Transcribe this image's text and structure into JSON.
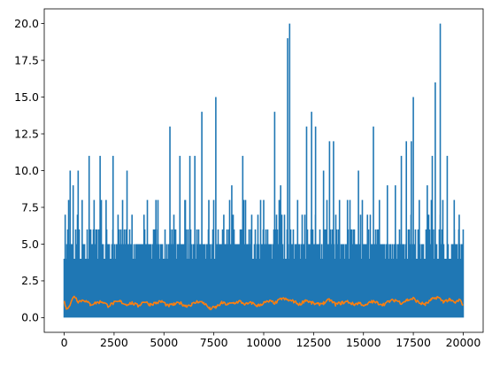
{
  "chart_data": {
    "type": "line",
    "title": "",
    "xlabel": "",
    "ylabel": "",
    "xlim": [
      -1000,
      21000
    ],
    "ylim": [
      -1.0,
      21.0
    ],
    "grid": false,
    "x_ticks": [
      0,
      2500,
      5000,
      7500,
      10000,
      12500,
      15000,
      17500,
      20000
    ],
    "x_tick_labels": [
      "0",
      "2500",
      "5000",
      "7500",
      "10000",
      "12500",
      "15000",
      "17500",
      "20000"
    ],
    "y_ticks": [
      0.0,
      2.5,
      5.0,
      7.5,
      10.0,
      12.5,
      15.0,
      17.5,
      20.0
    ],
    "y_tick_labels": [
      "0.0",
      "2.5",
      "5.0",
      "7.5",
      "10.0",
      "12.5",
      "15.0",
      "17.5",
      "20.0"
    ],
    "series": [
      {
        "color": "#1f77b4",
        "x_start": 0,
        "x_end": 20000,
        "samples": 20000,
        "dense_band": [
          0,
          5
        ],
        "peaks": [
          {
            "x": 50,
            "y": 7
          },
          {
            "x": 300,
            "y": 10
          },
          {
            "x": 450,
            "y": 9
          },
          {
            "x": 700,
            "y": 10
          },
          {
            "x": 900,
            "y": 8
          },
          {
            "x": 1250,
            "y": 11
          },
          {
            "x": 1500,
            "y": 8
          },
          {
            "x": 1800,
            "y": 11
          },
          {
            "x": 2100,
            "y": 8
          },
          {
            "x": 2450,
            "y": 11
          },
          {
            "x": 2700,
            "y": 7
          },
          {
            "x": 3150,
            "y": 10
          },
          {
            "x": 3400,
            "y": 7
          },
          {
            "x": 4000,
            "y": 7
          },
          {
            "x": 4600,
            "y": 8
          },
          {
            "x": 5300,
            "y": 13
          },
          {
            "x": 5800,
            "y": 11
          },
          {
            "x": 6050,
            "y": 8
          },
          {
            "x": 6300,
            "y": 11
          },
          {
            "x": 6550,
            "y": 11
          },
          {
            "x": 6900,
            "y": 14
          },
          {
            "x": 7250,
            "y": 8
          },
          {
            "x": 7600,
            "y": 15
          },
          {
            "x": 8000,
            "y": 7
          },
          {
            "x": 8400,
            "y": 9
          },
          {
            "x": 8950,
            "y": 11
          },
          {
            "x": 9400,
            "y": 7
          },
          {
            "x": 10000,
            "y": 8
          },
          {
            "x": 10550,
            "y": 14
          },
          {
            "x": 10850,
            "y": 9
          },
          {
            "x": 11200,
            "y": 19
          },
          {
            "x": 11300,
            "y": 20
          },
          {
            "x": 11700,
            "y": 8
          },
          {
            "x": 12150,
            "y": 13
          },
          {
            "x": 12400,
            "y": 14
          },
          {
            "x": 12600,
            "y": 13
          },
          {
            "x": 13000,
            "y": 10
          },
          {
            "x": 13300,
            "y": 12
          },
          {
            "x": 13500,
            "y": 12
          },
          {
            "x": 13800,
            "y": 8
          },
          {
            "x": 14200,
            "y": 8
          },
          {
            "x": 14750,
            "y": 10
          },
          {
            "x": 15200,
            "y": 7
          },
          {
            "x": 15500,
            "y": 13
          },
          {
            "x": 15800,
            "y": 8
          },
          {
            "x": 16200,
            "y": 9
          },
          {
            "x": 16600,
            "y": 9
          },
          {
            "x": 16900,
            "y": 11
          },
          {
            "x": 17150,
            "y": 12
          },
          {
            "x": 17400,
            "y": 12
          },
          {
            "x": 17500,
            "y": 15
          },
          {
            "x": 17800,
            "y": 8
          },
          {
            "x": 18200,
            "y": 9
          },
          {
            "x": 18450,
            "y": 11
          },
          {
            "x": 18600,
            "y": 16
          },
          {
            "x": 18850,
            "y": 20
          },
          {
            "x": 19200,
            "y": 11
          },
          {
            "x": 19550,
            "y": 8
          },
          {
            "x": 19800,
            "y": 7
          },
          {
            "x": 19950,
            "y": 5
          }
        ]
      },
      {
        "color": "#ff7f0e",
        "x_start": 0,
        "x_end": 20000,
        "mean": 0.95,
        "min": 0.5,
        "max": 1.6,
        "points": [
          [
            0,
            1.2
          ],
          [
            100,
            0.6
          ],
          [
            300,
            0.9
          ],
          [
            500,
            1.5
          ],
          [
            700,
            1.1
          ],
          [
            1000,
            1.2
          ],
          [
            1300,
            0.9
          ],
          [
            1600,
            1.0
          ],
          [
            1900,
            1.1
          ],
          [
            2200,
            0.8
          ],
          [
            2500,
            1.0
          ],
          [
            2800,
            1.1
          ],
          [
            3100,
            0.9
          ],
          [
            3400,
            1.0
          ],
          [
            3700,
            0.8
          ],
          [
            4000,
            1.1
          ],
          [
            4300,
            0.9
          ],
          [
            4600,
            1.0
          ],
          [
            4900,
            1.1
          ],
          [
            5200,
            0.8
          ],
          [
            5500,
            0.9
          ],
          [
            5800,
            1.0
          ],
          [
            6100,
            0.8
          ],
          [
            6400,
            0.9
          ],
          [
            6700,
            1.1
          ],
          [
            7000,
            1.0
          ],
          [
            7300,
            0.6
          ],
          [
            7600,
            0.7
          ],
          [
            7900,
            1.0
          ],
          [
            8200,
            0.9
          ],
          [
            8500,
            1.0
          ],
          [
            8800,
            1.1
          ],
          [
            9100,
            0.9
          ],
          [
            9400,
            1.0
          ],
          [
            9700,
            0.8
          ],
          [
            10000,
            1.0
          ],
          [
            10300,
            1.1
          ],
          [
            10600,
            1.0
          ],
          [
            10900,
            1.3
          ],
          [
            11200,
            1.2
          ],
          [
            11500,
            1.1
          ],
          [
            11800,
            0.9
          ],
          [
            12100,
            1.2
          ],
          [
            12400,
            1.0
          ],
          [
            12700,
            0.9
          ],
          [
            13000,
            1.0
          ],
          [
            13300,
            1.2
          ],
          [
            13600,
            0.9
          ],
          [
            13900,
            1.0
          ],
          [
            14200,
            1.1
          ],
          [
            14500,
            0.9
          ],
          [
            14800,
            1.0
          ],
          [
            15100,
            0.8
          ],
          [
            15400,
            1.1
          ],
          [
            15700,
            1.0
          ],
          [
            16000,
            0.9
          ],
          [
            16300,
            1.1
          ],
          [
            16600,
            1.2
          ],
          [
            16900,
            1.0
          ],
          [
            17200,
            1.2
          ],
          [
            17500,
            1.3
          ],
          [
            17800,
            1.0
          ],
          [
            18100,
            0.9
          ],
          [
            18400,
            1.2
          ],
          [
            18700,
            1.4
          ],
          [
            19000,
            1.1
          ],
          [
            19300,
            1.2
          ],
          [
            19600,
            1.0
          ],
          [
            19800,
            1.2
          ],
          [
            20000,
            0.9
          ]
        ]
      }
    ]
  }
}
